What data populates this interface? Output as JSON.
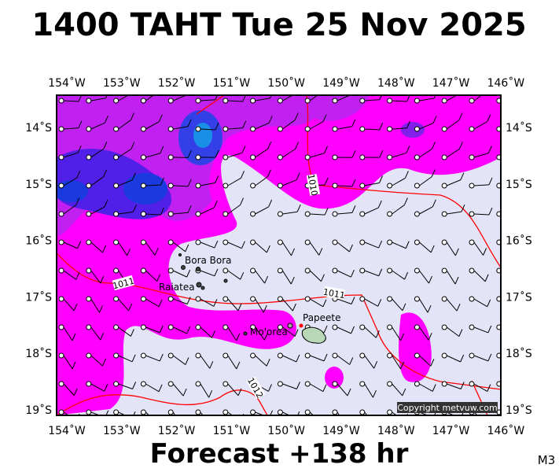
{
  "header": {
    "title": "1400 TAHT Tue 25 Nov 2025"
  },
  "map": {
    "lon_labels": [
      "154˚W",
      "153˚W",
      "152˚W",
      "151˚W",
      "150˚W",
      "149˚W",
      "148˚W",
      "147˚W",
      "146˚W"
    ],
    "lat_labels": [
      "14˚S",
      "15˚S",
      "16˚S",
      "17˚S",
      "18˚S",
      "19˚S"
    ],
    "places": [
      "Bora Bora",
      "Raiatea",
      "Mo'orea",
      "Papeete"
    ],
    "isobar_labels": [
      "1011",
      "1011",
      "1010",
      "1012"
    ],
    "copyright": "Copyright metvuw.com"
  },
  "footer": {
    "text": "Forecast +138 hr",
    "corner": "M3"
  }
}
